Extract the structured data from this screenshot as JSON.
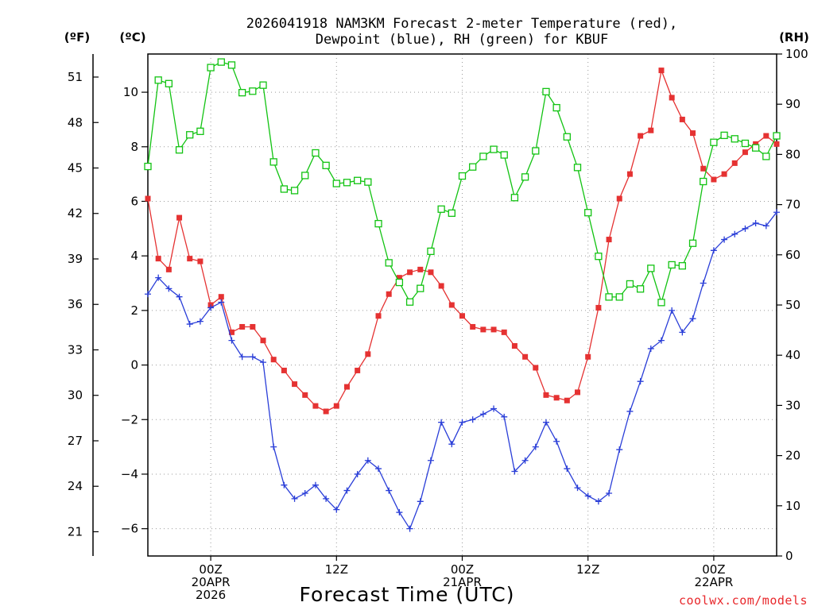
{
  "chart_data": {
    "type": "line",
    "title": [
      "2026041918 NAM3KM Forecast 2-meter Temperature (red),",
      "Dewpoint (blue), RH (green) for KBUF"
    ],
    "xlabel": "Forecast Time (UTC)",
    "credit": "coolwx.com/models",
    "units": {
      "fahrenheit": "(ºF)",
      "celsius": "(ºC)",
      "rh": "(RH)"
    },
    "x_range_hours": [
      0,
      60
    ],
    "x_ticks": [
      {
        "hour": 6,
        "lines": [
          "00Z",
          "20APR",
          "2026"
        ]
      },
      {
        "hour": 18,
        "lines": [
          "12Z"
        ]
      },
      {
        "hour": 30,
        "lines": [
          "00Z",
          "21APR"
        ]
      },
      {
        "hour": 42,
        "lines": [
          "12Z"
        ]
      },
      {
        "hour": 54,
        "lines": [
          "00Z",
          "22APR"
        ]
      }
    ],
    "ylim_celsius": [
      -7,
      11.4
    ],
    "yticks_celsius": [
      "-6",
      "-4",
      "-2",
      "0",
      "2",
      "4",
      "6",
      "8",
      "10"
    ],
    "yticks_fahrenheit": [
      "21",
      "24",
      "27",
      "30",
      "33",
      "36",
      "39",
      "42",
      "45",
      "48",
      "51"
    ],
    "ylim_rh": [
      0,
      100
    ],
    "yticks_rh": [
      "0",
      "10",
      "20",
      "30",
      "40",
      "50",
      "60",
      "70",
      "80",
      "90",
      "100"
    ],
    "series": [
      {
        "name": "2-meter Temperature",
        "axis": "celsius",
        "color": "#e53232",
        "marker": "filled-square",
        "values": [
          6.1,
          3.9,
          3.5,
          5.4,
          3.9,
          3.8,
          2.2,
          2.5,
          1.2,
          1.4,
          1.4,
          0.9,
          0.2,
          -0.2,
          -0.7,
          -1.1,
          -1.5,
          -1.7,
          -1.5,
          -0.8,
          -0.2,
          0.4,
          1.8,
          2.6,
          3.2,
          3.4,
          3.5,
          3.4,
          2.9,
          2.2,
          1.8,
          1.4,
          1.3,
          1.3,
          1.2,
          0.7,
          0.3,
          -0.1,
          -1.1,
          -1.2,
          -1.3,
          -1.0,
          0.3,
          2.1,
          4.6,
          6.1,
          7.0,
          8.4,
          8.6,
          10.8,
          9.8,
          9.0,
          8.5,
          7.2,
          6.8,
          7.0,
          7.4,
          7.8,
          8.1,
          8.4,
          8.1
        ]
      },
      {
        "name": "Dewpoint",
        "axis": "celsius",
        "color": "#2a3ed8",
        "marker": "plus",
        "values": [
          2.6,
          3.2,
          2.8,
          2.5,
          1.5,
          1.6,
          2.1,
          2.3,
          0.9,
          0.3,
          0.3,
          0.1,
          -3.0,
          -4.4,
          -4.9,
          -4.7,
          -4.4,
          -4.9,
          -5.3,
          -4.6,
          -4.0,
          -3.5,
          -3.8,
          -4.6,
          -5.4,
          -6.0,
          -5.0,
          -3.5,
          -2.1,
          -2.9,
          -2.1,
          -2.0,
          -1.8,
          -1.6,
          -1.9,
          -3.9,
          -3.5,
          -3.0,
          -2.1,
          -2.8,
          -3.8,
          -4.5,
          -4.8,
          -5.0,
          -4.7,
          -3.1,
          -1.7,
          -0.6,
          0.6,
          0.9,
          2.0,
          1.2,
          1.7,
          3.0,
          4.2,
          4.6,
          4.8,
          5.0,
          5.2,
          5.1,
          5.6
        ]
      },
      {
        "name": "RH",
        "axis": "rh",
        "color": "#12c312",
        "marker": "open-square",
        "values": [
          77.6,
          94.8,
          94.1,
          80.9,
          83.9,
          84.6,
          97.3,
          98.4,
          97.8,
          92.3,
          92.6,
          93.8,
          78.5,
          73.1,
          72.8,
          75.8,
          80.3,
          77.8,
          74.2,
          74.4,
          74.8,
          74.5,
          66.2,
          58.4,
          54.5,
          50.6,
          53.3,
          60.7,
          69.1,
          68.3,
          75.7,
          77.5,
          79.6,
          81.0,
          79.9,
          71.4,
          75.5,
          80.7,
          92.5,
          89.3,
          83.5,
          77.4,
          68.4,
          59.7,
          51.6,
          51.6,
          54.2,
          53.2,
          57.3,
          50.5,
          58.0,
          57.8,
          62.3,
          74.6,
          82.4,
          83.8,
          83.1,
          82.2,
          81.3,
          79.6,
          83.7
        ]
      }
    ]
  }
}
